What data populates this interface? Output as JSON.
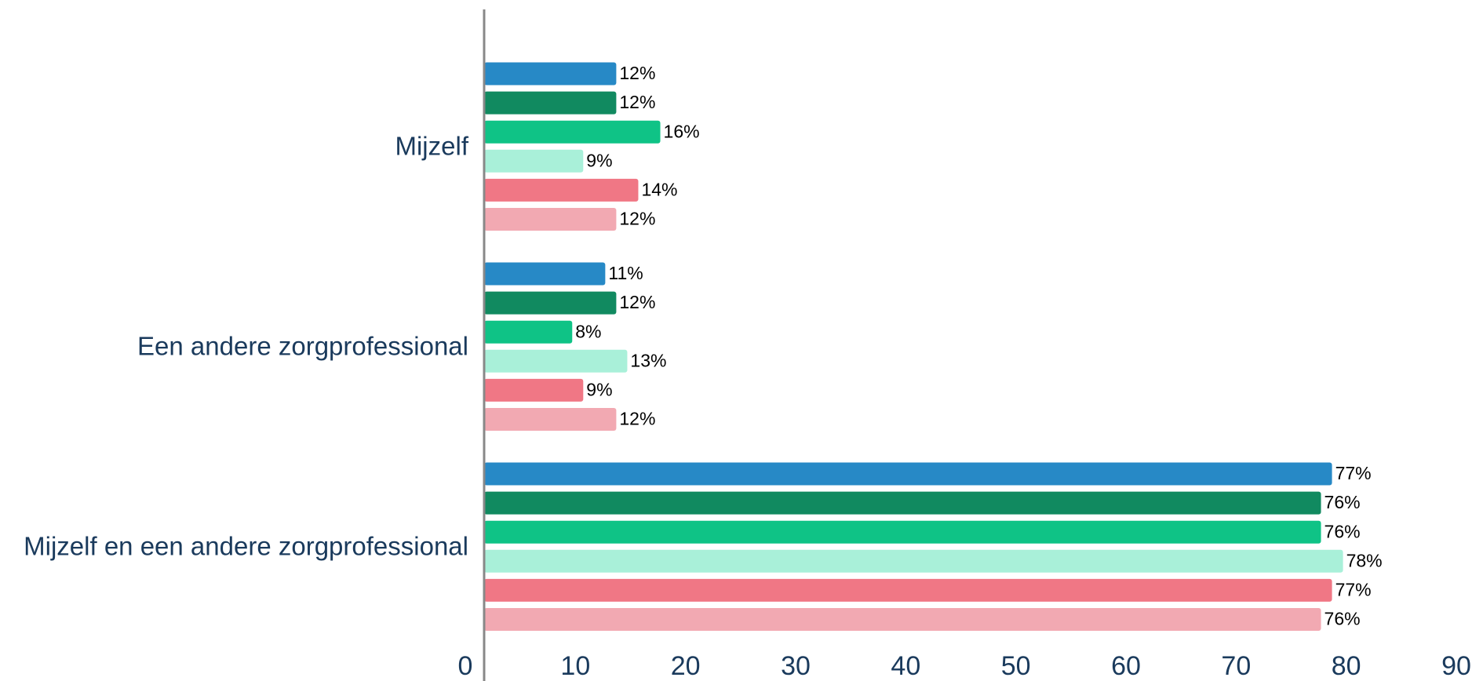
{
  "chart_data": {
    "type": "hbar",
    "categories": [
      "Mijzelf",
      "Een andere zorgprofessional",
      "Mijzelf en een andere zorgprofessional"
    ],
    "series": [
      {
        "color": "#2789c6",
        "values": [
          12,
          11,
          77
        ],
        "value_labels": [
          "12%",
          "11%",
          "77%"
        ]
      },
      {
        "color": "#118a60",
        "values": [
          12,
          12,
          76
        ],
        "value_labels": [
          "12%",
          "12%",
          "76%"
        ]
      },
      {
        "color": "#0fc386",
        "values": [
          16,
          8,
          76
        ],
        "value_labels": [
          "16%",
          "8%",
          "76%"
        ]
      },
      {
        "color": "#a9f0d9",
        "values": [
          9,
          13,
          78
        ],
        "value_labels": [
          "9%",
          "13%",
          "78%"
        ]
      },
      {
        "color": "#f07785",
        "values": [
          14,
          9,
          77
        ],
        "value_labels": [
          "14%",
          "9%",
          "77%"
        ]
      },
      {
        "color": "#f2a9b2",
        "values": [
          12,
          12,
          76
        ],
        "value_labels": [
          "12%",
          "12%",
          "76%"
        ]
      }
    ],
    "xlim": [
      0,
      90
    ],
    "xticks": [
      0,
      10,
      20,
      30,
      40,
      50,
      60,
      70,
      80,
      90
    ],
    "grid": false
  }
}
